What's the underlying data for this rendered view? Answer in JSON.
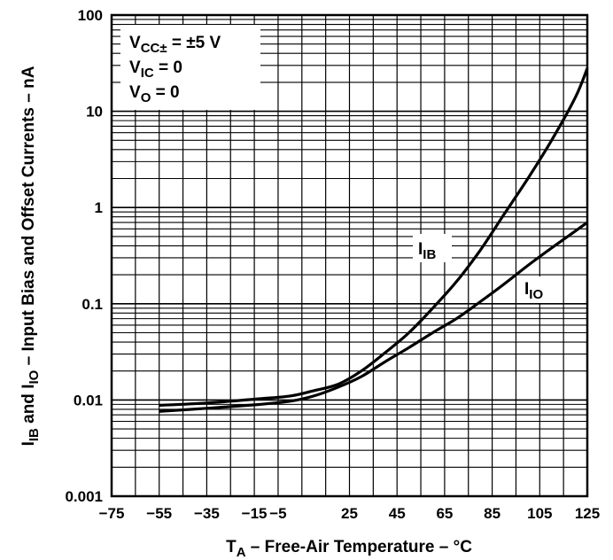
{
  "chart_data": {
    "type": "line",
    "y_scale": "log",
    "xlim": [
      -75,
      125
    ],
    "ylim": [
      0.001,
      100
    ],
    "x_ticks": [
      "−75",
      "−55",
      "−35",
      "−15",
      "−5",
      "25",
      "45",
      "65",
      "85",
      "105",
      "125"
    ],
    "y_ticks": [
      "100",
      "10",
      "1",
      "0.1",
      "0.01",
      "0.001"
    ],
    "xlabel": {
      "main": "T",
      "sub": "A",
      "rest": " – Free-Air Temperature – °C"
    },
    "ylabel": {
      "p1": "I",
      "s1": "IB",
      "p2": " and  I",
      "s2": "IO",
      "p3": " – Input Bias and Offset Currents – nA"
    },
    "conditions": [
      {
        "main": "V",
        "sub": "CC±",
        "rest": " = ±5 V"
      },
      {
        "main": "V",
        "sub": "IC",
        "rest": " = 0"
      },
      {
        "main": "V",
        "sub": "O",
        "rest": " = 0"
      }
    ],
    "series": [
      {
        "name": "IB",
        "label_main": "I",
        "label_sub": "IB",
        "x": [
          -55,
          -35,
          -15,
          0,
          10,
          20,
          30,
          40,
          50,
          60,
          70,
          80,
          90,
          100,
          110,
          120,
          125
        ],
        "values": [
          0.0088,
          0.0093,
          0.0102,
          0.011,
          0.0125,
          0.0145,
          0.02,
          0.031,
          0.05,
          0.09,
          0.17,
          0.36,
          0.85,
          2.0,
          5.0,
          14,
          28
        ]
      },
      {
        "name": "IO",
        "label_main": "I",
        "label_sub": "IO",
        "x": [
          -55,
          -35,
          -15,
          0,
          10,
          20,
          30,
          40,
          50,
          60,
          70,
          80,
          90,
          100,
          110,
          120,
          125
        ],
        "values": [
          0.0076,
          0.0082,
          0.0089,
          0.0097,
          0.011,
          0.0135,
          0.0175,
          0.025,
          0.035,
          0.05,
          0.07,
          0.105,
          0.16,
          0.25,
          0.38,
          0.57,
          0.7
        ]
      }
    ]
  }
}
